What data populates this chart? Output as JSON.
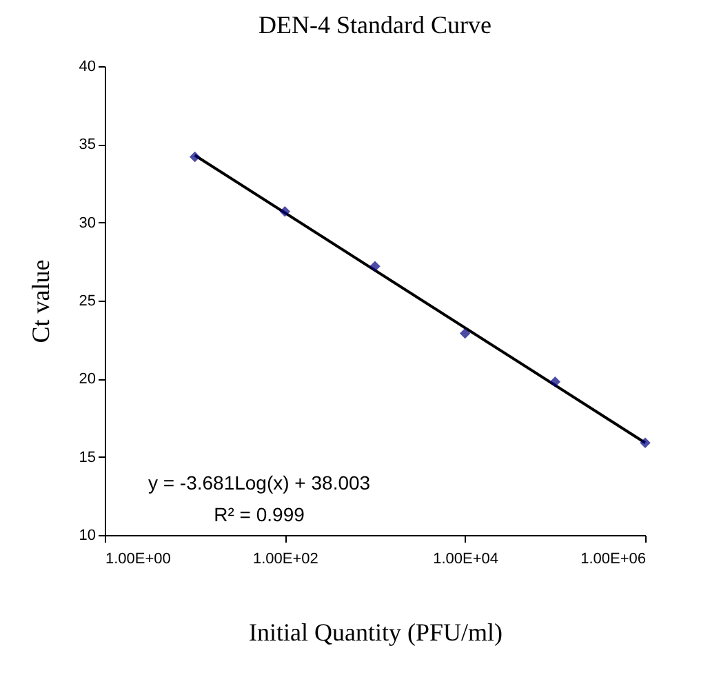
{
  "chart_data": {
    "type": "scatter",
    "title": "DEN-4 Standard Curve",
    "xlabel": "Initial Quantity (PFU/ml)",
    "ylabel": "Ct value",
    "annotations": [
      "y = -3.681Log(x) + 38.003",
      "R² = 0.999"
    ],
    "x": [
      10,
      100,
      1000,
      10000,
      100000,
      1000000
    ],
    "series": [
      {
        "type": "scatter",
        "color": "#000080",
        "marker": "diamond",
        "values": [
          34.2,
          30.7,
          27.2,
          22.9,
          19.8,
          15.9
        ]
      },
      {
        "type": "line",
        "color": "#000000",
        "x": [
          10,
          1000000
        ],
        "values": [
          34.3,
          15.9
        ],
        "line_style": "solid",
        "marker": "none"
      }
    ],
    "log": "x",
    "xlim": [
      1,
      1000000
    ],
    "xticks": [
      {
        "value": 1,
        "label": "1.00E+00"
      },
      {
        "value": 100,
        "label": "1.00E+02"
      },
      {
        "value": 10000,
        "label": "1.00E+04"
      },
      {
        "value": 1000000,
        "label": "1.00E+06"
      }
    ],
    "ylim": [
      10,
      40
    ],
    "yticks": [
      10,
      15,
      20,
      25,
      30,
      35,
      40
    ],
    "grid": false
  }
}
